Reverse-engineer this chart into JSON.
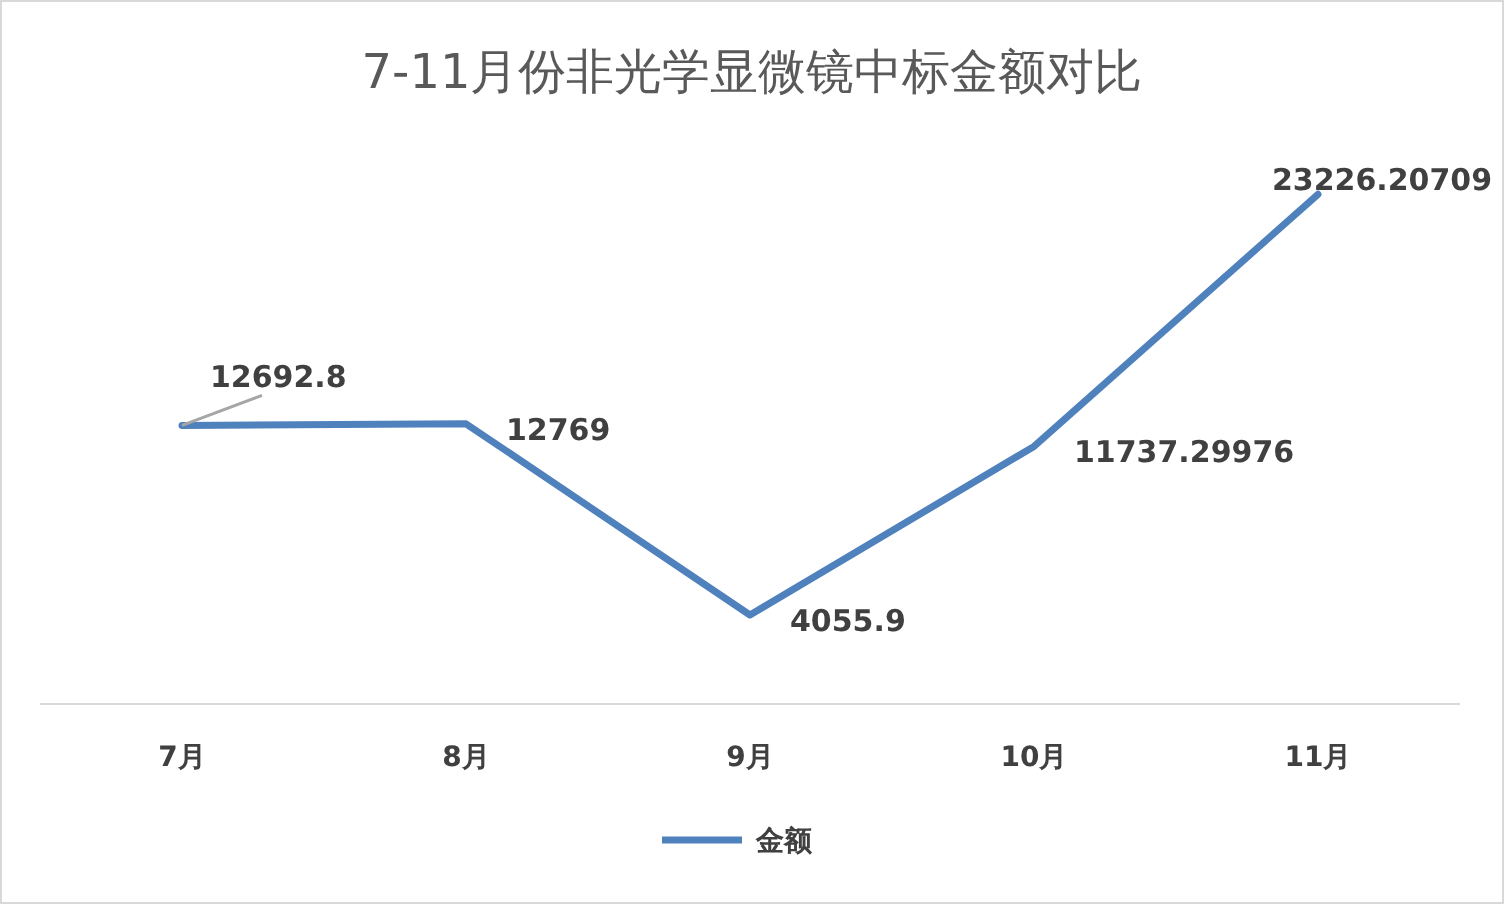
{
  "chart_data": {
    "type": "line",
    "title": "7-11月份非光学显微镜中标金额对比",
    "categories": [
      "7月",
      "8月",
      "9月",
      "10月",
      "11月"
    ],
    "series": [
      {
        "name": "金额",
        "color": "#4f81bd",
        "values": [
          12692.8,
          12769,
          4055.9,
          11737.29976,
          23226.20709
        ]
      }
    ],
    "data_labels": true,
    "legend": "bottom",
    "grid": false,
    "marker": "none",
    "line_style": "solid"
  }
}
